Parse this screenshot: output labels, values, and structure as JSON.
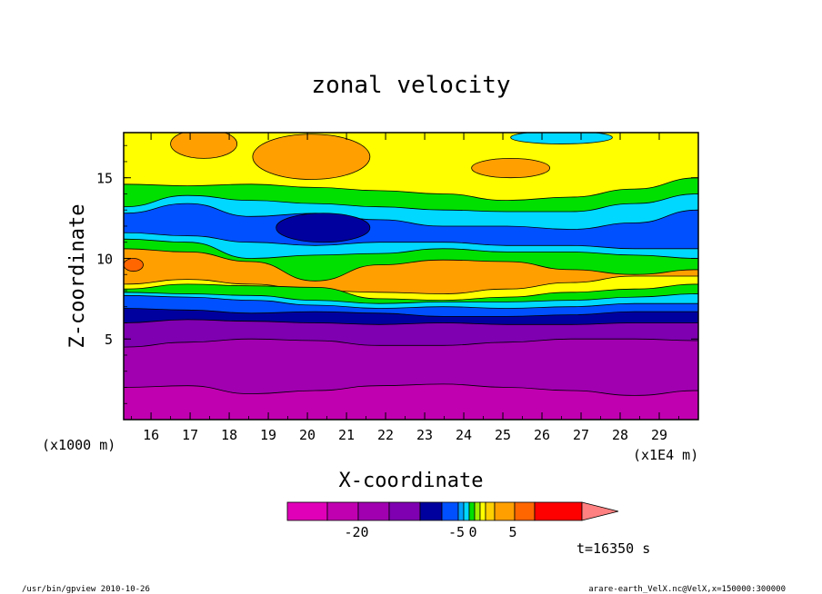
{
  "chart_data": {
    "type": "heatmap",
    "title": "zonal velocity",
    "xlabel": "X-coordinate",
    "ylabel": "Z-coordinate",
    "x_unit_label": "(x1E4 m)",
    "y_unit_label": "(x1000 m)",
    "xlim": [
      15.3,
      30.0
    ],
    "ylim": [
      0.0,
      17.8
    ],
    "x_ticks": [
      "16",
      "17",
      "18",
      "19",
      "20",
      "21",
      "22",
      "23",
      "24",
      "25",
      "26",
      "27",
      "28",
      "29"
    ],
    "y_ticks": [
      "5",
      "10",
      "15"
    ],
    "bands": [
      {
        "level": -22,
        "color": "#c000b0",
        "top": [
          2.0,
          2.1,
          1.6,
          1.8,
          2.1,
          2.2,
          2.0,
          1.8,
          1.5,
          1.8
        ]
      },
      {
        "level": -18,
        "color": "#a000b0",
        "top": [
          4.5,
          4.8,
          5.0,
          4.9,
          4.6,
          4.6,
          4.8,
          5.0,
          5.0,
          4.9
        ]
      },
      {
        "level": -12,
        "color": "#7e00b0",
        "top": [
          6.0,
          6.2,
          6.1,
          6.0,
          5.9,
          6.0,
          5.9,
          5.9,
          6.0,
          6.0
        ]
      },
      {
        "level": -7,
        "color": "#00009e",
        "top": [
          6.9,
          6.8,
          6.6,
          6.7,
          6.6,
          6.4,
          6.4,
          6.5,
          6.7,
          6.7
        ]
      },
      {
        "level": -4,
        "color": "#0050ff",
        "top": [
          7.7,
          7.6,
          7.4,
          7.1,
          6.9,
          7.0,
          6.9,
          7.0,
          7.2,
          7.2
        ]
      },
      {
        "level": -2,
        "color": "#00d8ff",
        "top": [
          7.9,
          7.8,
          7.7,
          7.4,
          7.2,
          7.3,
          7.3,
          7.4,
          7.6,
          7.8
        ]
      },
      {
        "level": 0,
        "color": "#00e000",
        "top": [
          8.1,
          8.4,
          8.3,
          8.2,
          7.5,
          7.4,
          7.6,
          7.9,
          8.1,
          8.4
        ]
      },
      {
        "level": 2,
        "color": "#ffff00",
        "top": [
          8.4,
          8.7,
          8.4,
          8.0,
          7.9,
          7.8,
          8.1,
          8.5,
          8.9,
          8.9
        ]
      },
      {
        "level": 4,
        "color": "#ffa000",
        "top": [
          10.6,
          10.4,
          9.8,
          8.6,
          9.6,
          9.9,
          9.8,
          9.3,
          9.0,
          9.3
        ]
      },
      {
        "level": 0,
        "color": "#00e000",
        "top": [
          11.2,
          11.0,
          10.0,
          10.2,
          10.3,
          10.6,
          10.4,
          10.4,
          10.2,
          10.0
        ]
      },
      {
        "level": -2,
        "color": "#00d8ff",
        "top": [
          11.6,
          11.4,
          11.0,
          10.8,
          11.0,
          11.0,
          10.8,
          10.8,
          10.6,
          10.6
        ]
      },
      {
        "level": -4,
        "color": "#0050ff",
        "top": [
          12.8,
          13.4,
          12.6,
          12.8,
          12.4,
          12.0,
          12.0,
          11.8,
          12.2,
          13.0
        ]
      },
      {
        "level": -2,
        "color": "#00d8ff",
        "top": [
          13.2,
          13.9,
          13.6,
          13.4,
          13.2,
          13.0,
          12.9,
          12.9,
          13.4,
          14.0
        ]
      },
      {
        "level": 0,
        "color": "#00e000",
        "top": [
          14.6,
          14.5,
          14.6,
          14.4,
          14.2,
          14.0,
          13.6,
          13.8,
          14.3,
          15.0
        ]
      },
      {
        "level": 2,
        "color": "#ffff00",
        "top": [
          17.8,
          17.8,
          17.8,
          17.8,
          17.8,
          17.8,
          17.8,
          17.8,
          17.8,
          17.8
        ]
      }
    ],
    "features": [
      {
        "level": -7,
        "color": "#00009e",
        "x_range": [
          19.2,
          21.6
        ],
        "z_center": 11.9,
        "z_half": 0.9
      },
      {
        "level": 4,
        "color": "#ffa000",
        "x_range": [
          16.5,
          18.2
        ],
        "z_center": 17.1,
        "z_half": 0.9
      },
      {
        "level": 4,
        "color": "#ffa000",
        "x_range": [
          18.6,
          21.6
        ],
        "z_center": 16.3,
        "z_half": 1.4
      },
      {
        "level": 4,
        "color": "#ffa000",
        "x_range": [
          24.2,
          26.2
        ],
        "z_center": 15.6,
        "z_half": 0.6
      },
      {
        "level": -2,
        "color": "#00d8ff",
        "x_range": [
          25.2,
          27.8
        ],
        "z_center": 17.5,
        "z_half": 0.4
      },
      {
        "level": 6,
        "color": "#ff6600",
        "x_range": [
          15.3,
          15.8
        ],
        "z_center": 9.6,
        "z_half": 0.4
      }
    ],
    "colorbar": {
      "colors": [
        "#e000b8",
        "#c000b0",
        "#a000b0",
        "#7e00b0",
        "#00009e",
        "#0050ff",
        "#00a0ff",
        "#00d8ff",
        "#00e000",
        "#a0f000",
        "#ffff00",
        "#ffd000",
        "#ffa000",
        "#ff6600",
        "#ff0000",
        "#ff8080"
      ],
      "widths": [
        44,
        34,
        34,
        34,
        24,
        18,
        6,
        6,
        6,
        6,
        6,
        10,
        22,
        22,
        52
      ],
      "tick_labels": [
        {
          "text": "-20",
          "segment": 1
        },
        {
          "text": "-5",
          "segment": 5
        },
        {
          "text": "0",
          "segment": 8
        },
        {
          "text": "5",
          "segment": 12
        }
      ]
    },
    "time_label": "t=16350 s"
  },
  "footer": {
    "left": "/usr/bin/gpview  2010-10-26",
    "right": "arare-earth_VelX.nc@VelX,x=150000:300000"
  }
}
